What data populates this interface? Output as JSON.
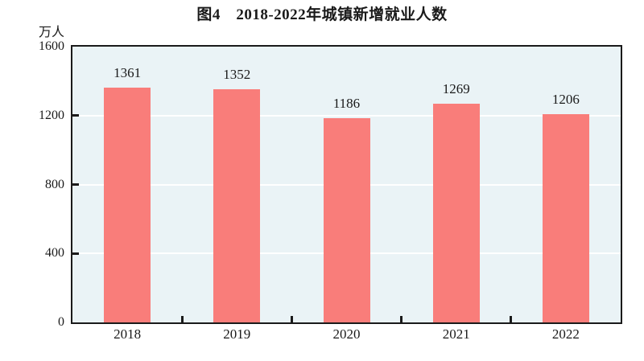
{
  "chart_data": {
    "type": "bar",
    "title": "图4　2018-2022年城镇新增就业人数",
    "unit_label": "万人",
    "categories": [
      "2018",
      "2019",
      "2020",
      "2021",
      "2022"
    ],
    "values": [
      1361,
      1352,
      1186,
      1269,
      1206
    ],
    "xlabel": "",
    "ylabel": "万人",
    "ylim": [
      0,
      1600
    ],
    "yticks": [
      0,
      400,
      800,
      1200,
      1600
    ],
    "grid_values": [
      400,
      800,
      1200
    ],
    "legend": "none",
    "bar_color": "#f97d7a",
    "plot_background": "#eaf3f6",
    "gridline_color": "#ffffff",
    "axis_color": "#1a1a1a"
  }
}
